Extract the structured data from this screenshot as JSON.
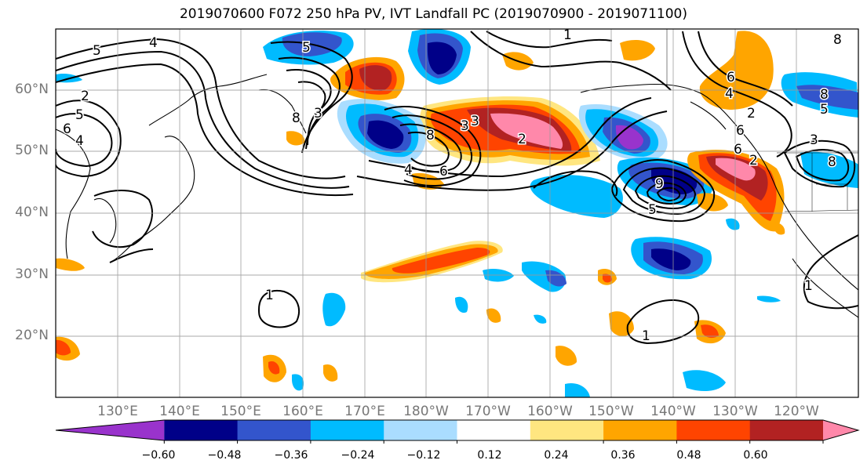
{
  "title": "2019070600 F072 250 hPa PV, IVT Landfall PC (2019070900 - 2019071100)",
  "lat_labels": [
    "60°N",
    "50°N",
    "40°N",
    "30°N",
    "20°N"
  ],
  "lon_labels": [
    "130°E",
    "140°E",
    "150°E",
    "160°E",
    "170°E",
    "180°W",
    "170°W",
    "160°W",
    "150°W",
    "140°W",
    "130°W",
    "120°W"
  ],
  "colorbar": {
    "labels": [
      "−0.60",
      "−0.48",
      "−0.36",
      "−0.24",
      "−0.12",
      "0.12",
      "0.24",
      "0.36",
      "0.48",
      "0.60"
    ],
    "colors": [
      "#9933cc",
      "#000088",
      "#3355cc",
      "#00bbff",
      "#aaddff",
      "#ffffff",
      "#ffe680",
      "#ffa500",
      "#ff4400",
      "#b22222",
      "#ff88aa"
    ]
  },
  "contour_labels": [
    "5",
    "4",
    "2",
    "5",
    "4",
    "6",
    "5",
    "1",
    "6",
    "8",
    "3",
    "2",
    "8",
    "3",
    "3",
    "2",
    "4",
    "6",
    "8",
    "5",
    "3",
    "6",
    "4",
    "6",
    "2",
    "8",
    "5",
    "9",
    "1",
    "1",
    "1",
    "8"
  ]
}
